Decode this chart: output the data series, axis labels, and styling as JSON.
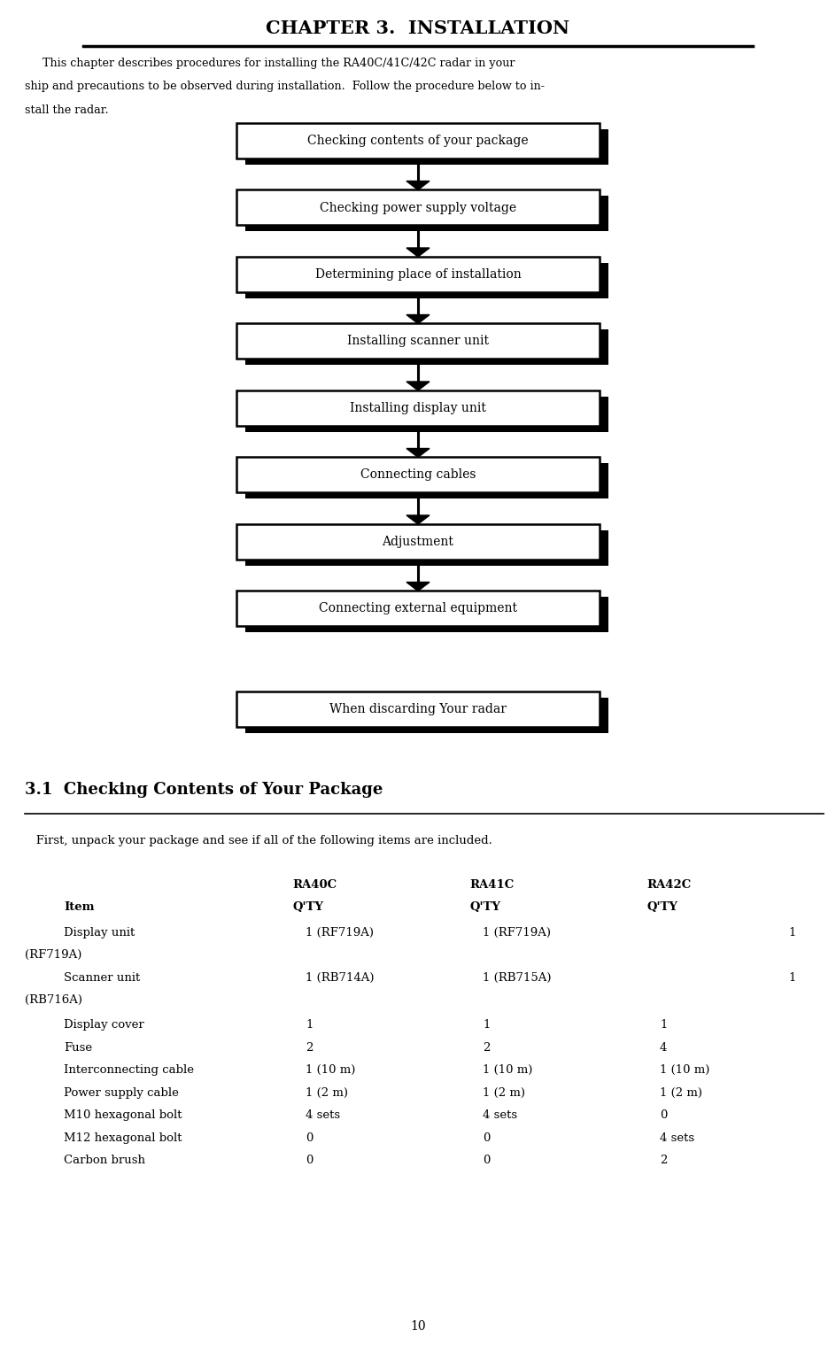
{
  "title": "CHAPTER 3.  INSTALLATION",
  "intro_line1": "     This chapter describes procedures for installing the RA40C/41C/42C radar in your",
  "intro_line2": "ship and precautions to be observed during installation.  Follow the procedure below to in-",
  "intro_line3": "stall the radar.",
  "flowchart_items": [
    "Checking contents of your package",
    "Checking power supply voltage",
    "Determining place of installation",
    "Installing scanner unit",
    "Installing display unit",
    "Connecting cables",
    "Adjustment",
    "Connecting external equipment"
  ],
  "last_box": "When discarding Your radar",
  "section_title": "3.1  Checking Contents of Your Package",
  "section_intro": "   First, unpack your package and see if all of the following items are included.",
  "page_number": "10",
  "bg_color": "#ffffff",
  "box_fill": "#ffffff",
  "box_edge": "#000000"
}
